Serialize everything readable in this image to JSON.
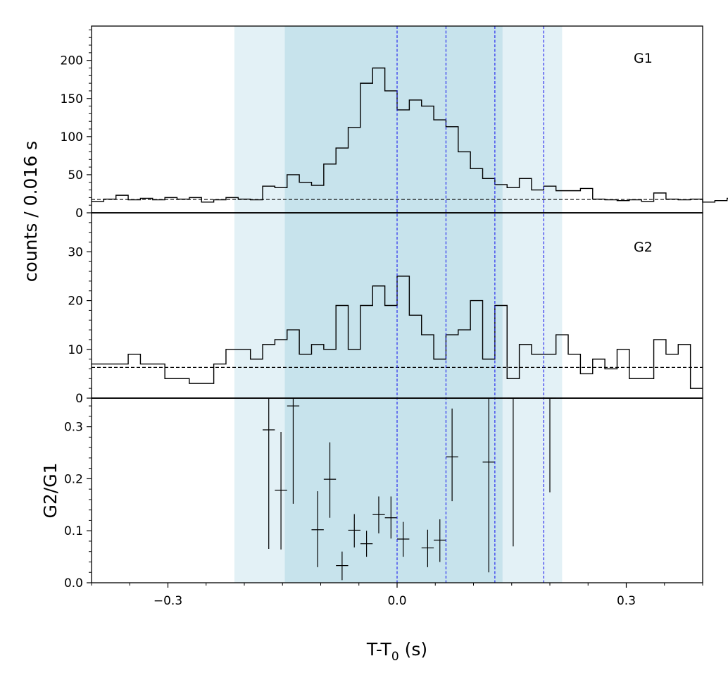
{
  "chart_data": {
    "type": "line",
    "x_axis": {
      "label": "T-T",
      "label_subscript": "0",
      "label_suffix": " (s)",
      "lim": [
        -0.4,
        0.4
      ],
      "ticks": [
        -0.3,
        0.0,
        0.3
      ],
      "tick_labels": [
        "−0.3",
        "0.0",
        "0.3"
      ]
    },
    "shaded_regions": [
      {
        "x": [
          -0.213,
          0.216
        ],
        "color": "#e3f1f6"
      },
      {
        "x": [
          -0.147,
          0.138
        ],
        "color": "#c7e3ec"
      }
    ],
    "vlines": {
      "x": [
        0.0,
        0.064,
        0.128,
        0.192
      ],
      "color": "#1a1aee"
    },
    "shared_ylabel": "counts /  0.016 s",
    "panels": [
      {
        "label": "G1",
        "type": "step",
        "ylim": [
          0,
          245
        ],
        "yticks": [
          0,
          50,
          100,
          150,
          200
        ],
        "ytick_labels": [
          "0",
          "50",
          "100",
          "150",
          "200"
        ],
        "background_level": 17.5,
        "bin_width": 0.016,
        "bin_start": -0.4,
        "counts": [
          15,
          18,
          23,
          17,
          19,
          17,
          20,
          18,
          20,
          14,
          17,
          20,
          18,
          17,
          35,
          33,
          50,
          40,
          36,
          64,
          85,
          112,
          170,
          190,
          160,
          135,
          148,
          140,
          122,
          113,
          80,
          58,
          45,
          37,
          33,
          45,
          30,
          35,
          29,
          29,
          32,
          18,
          17,
          16,
          17,
          15,
          26,
          18,
          17,
          18,
          14,
          16,
          19,
          15
        ]
      },
      {
        "label": "G2",
        "type": "step",
        "ylim": [
          0,
          38
        ],
        "yticks": [
          0,
          10,
          20,
          30
        ],
        "ytick_labels": [
          "0",
          "10",
          "20",
          "30"
        ],
        "background_level": 6.3,
        "bin_width": 0.032,
        "bin_start": -0.4,
        "bin_edges": [
          -0.4,
          -0.352,
          -0.336,
          -0.304,
          -0.272,
          -0.24,
          -0.224,
          -0.192,
          -0.176,
          -0.16,
          -0.144,
          -0.128,
          -0.112,
          -0.096,
          -0.08,
          -0.064,
          -0.048,
          -0.032,
          -0.016,
          0.0,
          0.016,
          0.032,
          0.048,
          0.064,
          0.08,
          0.096,
          0.112,
          0.128,
          0.144,
          0.16,
          0.176,
          0.192,
          0.208,
          0.224,
          0.24,
          0.256,
          0.272,
          0.288,
          0.304,
          0.336,
          0.352,
          0.368,
          0.384,
          0.4
        ],
        "counts": [
          7,
          9,
          7,
          4,
          3,
          7,
          10,
          8,
          11,
          12,
          14,
          9,
          11,
          10,
          19,
          10,
          19,
          23,
          19,
          25,
          17,
          13,
          8,
          13,
          14,
          20,
          8,
          19,
          4,
          11,
          9,
          9,
          13,
          9,
          5,
          8,
          6,
          10,
          4,
          12,
          9,
          11,
          2
        ]
      },
      {
        "label": "",
        "ylabel": "G2/G1",
        "type": "errorbar",
        "ylim": [
          0,
          0.355
        ],
        "yticks": [
          0.0,
          0.1,
          0.2,
          0.3
        ],
        "ytick_labels": [
          "0.0",
          "0.1",
          "0.2",
          "0.3"
        ],
        "x_halfwidth": 0.008,
        "points": [
          {
            "x": -0.168,
            "y": 0.294,
            "lo": 0.065,
            "hi": 0.355
          },
          {
            "x": -0.152,
            "y": 0.178,
            "lo": 0.064,
            "hi": 0.29
          },
          {
            "x": -0.136,
            "y": 0.34,
            "lo": 0.152,
            "hi": 0.355
          },
          {
            "x": -0.104,
            "y": 0.102,
            "lo": 0.03,
            "hi": 0.176
          },
          {
            "x": -0.088,
            "y": 0.199,
            "lo": 0.125,
            "hi": 0.27
          },
          {
            "x": -0.072,
            "y": 0.033,
            "lo": 0.005,
            "hi": 0.06
          },
          {
            "x": -0.056,
            "y": 0.101,
            "lo": 0.068,
            "hi": 0.132
          },
          {
            "x": -0.04,
            "y": 0.075,
            "lo": 0.05,
            "hi": 0.1
          },
          {
            "x": -0.024,
            "y": 0.131,
            "lo": 0.095,
            "hi": 0.166
          },
          {
            "x": -0.008,
            "y": 0.125,
            "lo": 0.085,
            "hi": 0.166
          },
          {
            "x": 0.008,
            "y": 0.084,
            "lo": 0.05,
            "hi": 0.117
          },
          {
            "x": 0.04,
            "y": 0.067,
            "lo": 0.03,
            "hi": 0.102
          },
          {
            "x": 0.056,
            "y": 0.082,
            "lo": 0.04,
            "hi": 0.122
          },
          {
            "x": 0.072,
            "y": 0.242,
            "lo": 0.157,
            "hi": 0.335
          },
          {
            "x": 0.12,
            "y": 0.232,
            "lo": 0.02,
            "hi": 0.355
          },
          {
            "x": 0.152,
            "y": 0.355,
            "lo": 0.07,
            "hi": 0.355
          },
          {
            "x": 0.2,
            "y": 0.355,
            "lo": 0.174,
            "hi": 0.355
          }
        ]
      }
    ]
  }
}
